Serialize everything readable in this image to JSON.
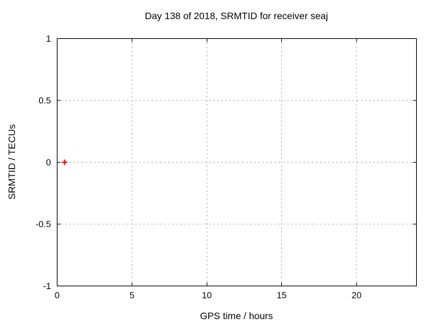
{
  "figure": {
    "background": "#ffffff",
    "border_color": "#000000",
    "grid_color": "#a0a0a0",
    "text_color": "#000000"
  },
  "chart_data": {
    "type": "scatter",
    "title": "Day 138 of 2018, SRMTID for receiver seaj",
    "xlabel": "GPS time / hours",
    "ylabel": "SRMTID / TECUs",
    "xlim": [
      0,
      24
    ],
    "ylim": [
      -1,
      1
    ],
    "xticks": [
      0,
      5,
      10,
      15,
      20
    ],
    "yticks": [
      -1,
      -0.5,
      0,
      0.5,
      1
    ],
    "grid": true,
    "grid_style": "dashed",
    "legend": "none",
    "series": [
      {
        "name": "SRMTID",
        "marker": "plus",
        "color": "#ff0000",
        "points": [
          {
            "x": 0.5,
            "y": 0.0
          }
        ]
      }
    ]
  }
}
